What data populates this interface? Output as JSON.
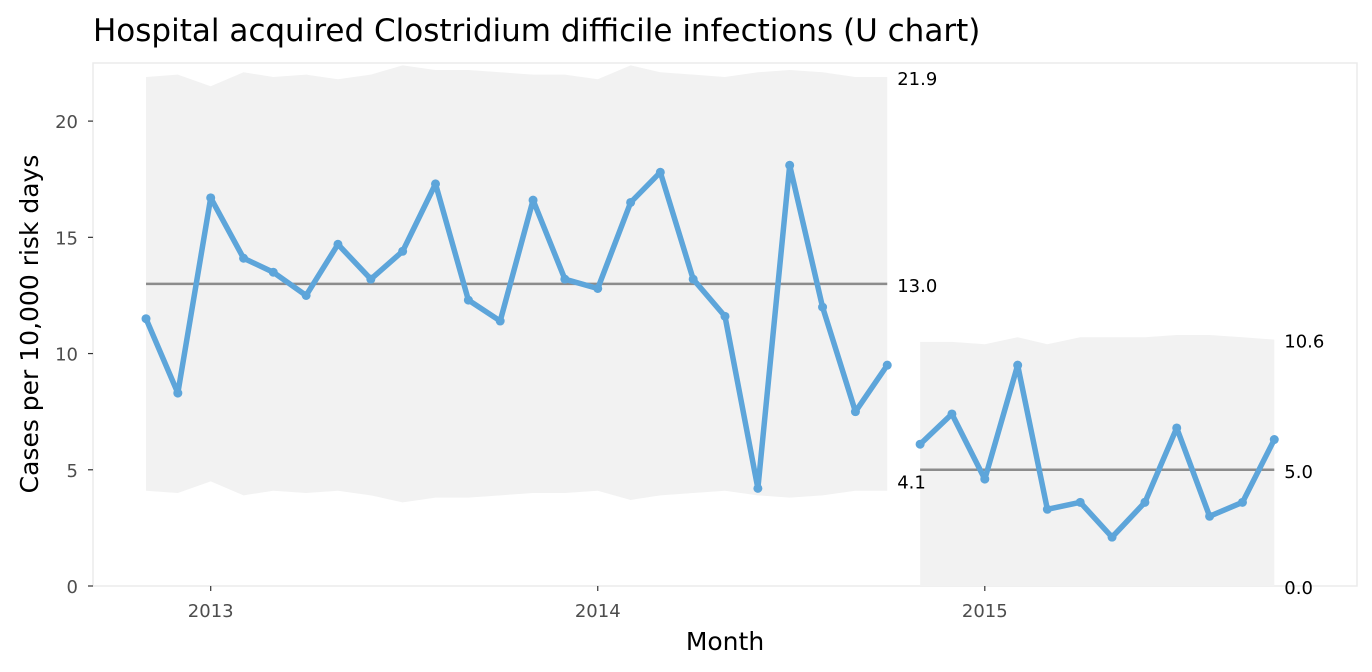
{
  "chart_data": {
    "type": "line",
    "title": "Hospital acquired Clostridium difficile infections (U chart)",
    "xlabel": "Month",
    "ylabel": "Cases per 10,000 risk days",
    "ylim": [
      0,
      22.5
    ],
    "xlim": [
      "2012-09-12",
      "2015-12-18"
    ],
    "x_ticks": [
      {
        "date": "2013-01-01",
        "label": "2013"
      },
      {
        "date": "2014-01-01",
        "label": "2014"
      },
      {
        "date": "2015-01-01",
        "label": "2015"
      }
    ],
    "y_ticks": [
      0,
      5,
      10,
      15,
      20
    ],
    "grid": false,
    "colors": {
      "line": "#5DA5DA",
      "center_line": "#8C8C8C",
      "limits_band": "#F2F2F2",
      "panel_border": "#EBEBEB"
    },
    "series": [
      {
        "x": [
          "2012-11-01",
          "2012-12-01",
          "2013-01-01",
          "2013-02-01",
          "2013-03-01",
          "2013-04-01",
          "2013-05-01",
          "2013-06-01",
          "2013-07-01",
          "2013-08-01",
          "2013-09-01",
          "2013-10-01",
          "2013-11-01",
          "2013-12-01",
          "2014-01-01",
          "2014-02-01",
          "2014-03-01",
          "2014-04-01",
          "2014-05-01",
          "2014-06-01",
          "2014-07-01",
          "2014-08-01",
          "2014-09-01",
          "2014-10-01"
        ],
        "values": [
          11.5,
          8.3,
          16.7,
          14.1,
          13.5,
          12.5,
          14.7,
          13.2,
          14.4,
          17.3,
          12.3,
          11.4,
          16.6,
          13.2,
          12.8,
          16.5,
          17.8,
          13.2,
          11.6,
          4.2,
          18.1,
          12.0,
          7.5,
          9.5
        ],
        "center_line": 13.0,
        "ucl": [
          21.9,
          22.0,
          21.5,
          22.1,
          21.9,
          22.0,
          21.8,
          22.0,
          22.4,
          22.2,
          22.2,
          22.1,
          22.0,
          22.0,
          21.8,
          22.4,
          22.1,
          22.0,
          21.9,
          22.1,
          22.2,
          22.1,
          21.9,
          21.9
        ],
        "lcl": [
          4.1,
          4.0,
          4.5,
          3.9,
          4.1,
          4.0,
          4.1,
          3.9,
          3.6,
          3.8,
          3.8,
          3.9,
          4.0,
          4.0,
          4.1,
          3.7,
          3.9,
          4.0,
          4.1,
          3.9,
          3.8,
          3.9,
          4.1,
          4.1
        ],
        "limit_labels": {
          "ucl": "21.9",
          "center": "13.0",
          "lcl": "4.1"
        }
      },
      {
        "x": [
          "2014-11-01",
          "2014-12-01",
          "2015-01-01",
          "2015-02-01",
          "2015-03-01",
          "2015-04-01",
          "2015-05-01",
          "2015-06-01",
          "2015-07-01",
          "2015-08-01",
          "2015-09-01",
          "2015-10-01"
        ],
        "values": [
          6.1,
          7.4,
          4.6,
          9.5,
          3.3,
          3.6,
          2.1,
          3.6,
          6.8,
          3.0,
          3.6,
          6.3
        ],
        "center_line": 5.0,
        "ucl": [
          10.5,
          10.5,
          10.4,
          10.7,
          10.4,
          10.7,
          10.7,
          10.7,
          10.8,
          10.8,
          10.7,
          10.6
        ],
        "lcl": [
          0,
          0,
          0,
          0,
          0,
          0,
          0,
          0,
          0,
          0,
          0,
          0
        ],
        "limit_labels": {
          "ucl": "10.6",
          "center": "5.0",
          "lcl": "0.0"
        }
      }
    ]
  }
}
